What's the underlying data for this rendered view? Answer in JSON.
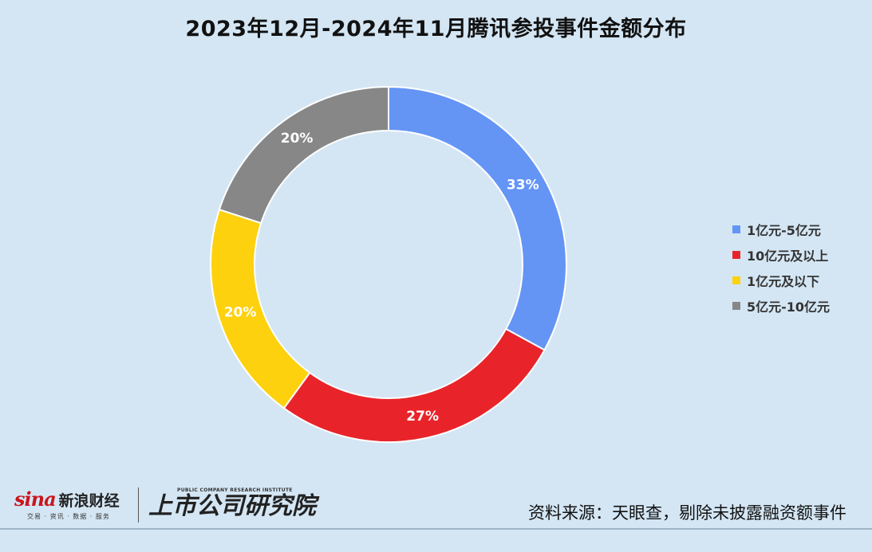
{
  "title": "2023年12月-2024年11月腾讯参投事件金额分布",
  "chart_data": {
    "type": "pie",
    "title": "2023年12月-2024年11月腾讯参投事件金额分布",
    "donut": true,
    "legend_position": "right",
    "start_angle_deg": 0,
    "slices": [
      {
        "label": "1亿元-5亿元",
        "value": 33,
        "label_text": "33%",
        "color": "#6495f5"
      },
      {
        "label": "10亿元及以上",
        "value": 27,
        "label_text": "27%",
        "color": "#e8242a"
      },
      {
        "label": "1亿元及以下",
        "value": 20,
        "label_text": "20%",
        "color": "#fdd10d"
      },
      {
        "label": "5亿元-10亿元",
        "value": 20,
        "label_text": "20%",
        "color": "#878787"
      }
    ]
  },
  "footer": {
    "sina_mark": "sina",
    "sina_name": "新浪财经",
    "sina_sub": "交易 · 资讯 · 数据 · 服务",
    "institute_en": "PUBLIC COMPANY RESEARCH INSTITUTE",
    "institute_cn": "上市公司研究院",
    "source": "资料来源：天眼查，剔除未披露融资额事件"
  }
}
